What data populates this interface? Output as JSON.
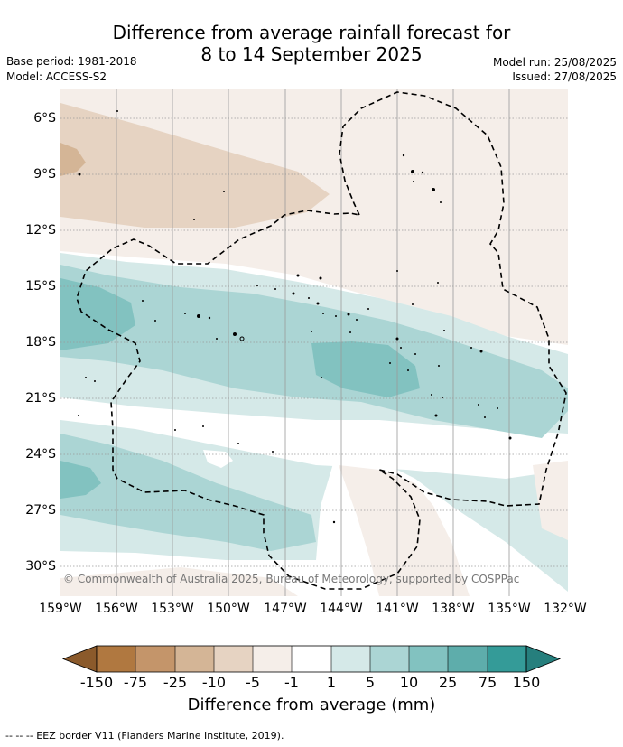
{
  "title": {
    "line1": "Difference from average rainfall forecast for",
    "line2": "8 to 14 September 2025"
  },
  "meta": {
    "base_period": "Base period: 1981-2018",
    "model": "Model: ACCESS-S2",
    "model_run": "Model run: 25/08/2025",
    "issued": "Issued: 27/08/2025"
  },
  "map": {
    "y_ticks": [
      "6°S",
      "9°S",
      "12°S",
      "15°S",
      "18°S",
      "21°S",
      "24°S",
      "27°S",
      "30°S"
    ],
    "x_ticks": [
      "159°W",
      "156°W",
      "153°W",
      "150°W",
      "147°W",
      "144°W",
      "141°W",
      "138°W",
      "135°W",
      "132°W"
    ],
    "copyright": "© Commonwealth of Australia 2025, Bureau of Meteorology, supported by COSPPac",
    "eez_border_style": "dashed"
  },
  "colorbar": {
    "tick_labels": [
      "-150",
      "-75",
      "-25",
      "-10",
      "-5",
      "-1",
      "1",
      "5",
      "10",
      "25",
      "75",
      "150"
    ],
    "colors": [
      "#8b5a2b",
      "#b07840",
      "#c4956a",
      "#d4b596",
      "#e6d3c2",
      "#f5eee9",
      "#ffffff",
      "#d5e9e8",
      "#abd5d4",
      "#82c2c0",
      "#5eadab",
      "#349b98",
      "#267f7d"
    ],
    "label": "Difference from average (mm)"
  },
  "footnote": "--  --  -- EEZ border V11 (Flanders Marine Institute, 2019)."
}
